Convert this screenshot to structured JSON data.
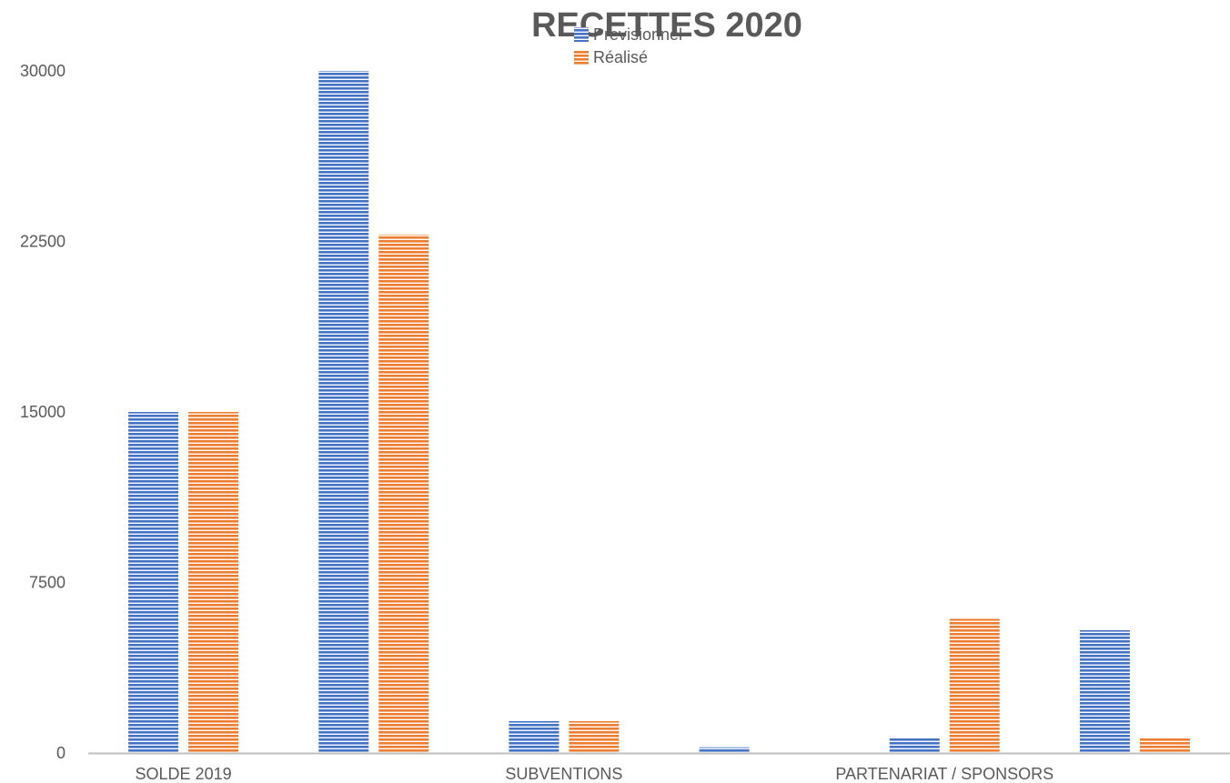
{
  "chart_data": {
    "type": "bar",
    "title": "RECETTES 2020",
    "xlabel": "",
    "ylabel": "",
    "ylim": [
      0,
      30000
    ],
    "yticks": [
      "0",
      "7500",
      "15000",
      "22500",
      "30000"
    ],
    "grid": false,
    "legend_position": "top",
    "categories": [
      "SOLDE 2019",
      "",
      "SUBVENTIONS",
      "",
      "PARTENARIAT / SPONSORS",
      ""
    ],
    "series": [
      {
        "name": "Previsionnel",
        "color": "#4472C4",
        "values": [
          15000,
          30000,
          1400,
          250,
          650,
          5400
        ]
      },
      {
        "name": "Réalisé",
        "color": "#ED7D31",
        "values": [
          15000,
          22800,
          1400,
          0,
          5900,
          650
        ]
      }
    ]
  }
}
